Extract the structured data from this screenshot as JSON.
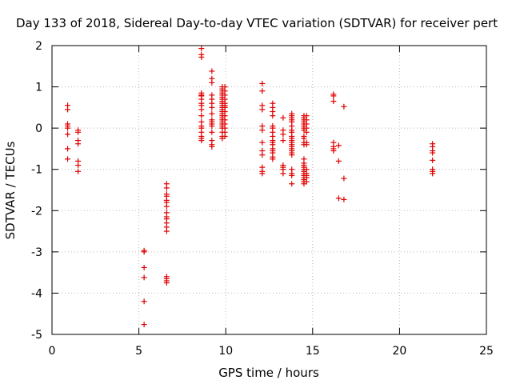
{
  "chart_data": {
    "type": "scatter",
    "title": "Day 133 of 2018, Sidereal Day-to-day VTEC variation (SDTVAR) for receiver pert",
    "xlabel": "GPS time / hours",
    "ylabel": "SDTVAR / TECUs",
    "xlim": [
      0,
      25
    ],
    "ylim": [
      -5,
      2
    ],
    "xticks": [
      0,
      5,
      10,
      15,
      20,
      25
    ],
    "yticks": [
      -5,
      -4,
      -3,
      -2,
      -1,
      0,
      1,
      2
    ],
    "grid": true,
    "marker": "+",
    "color": "#e00000",
    "series": [
      {
        "name": "SDTVAR",
        "x": [
          0.9,
          0.9,
          0.9,
          0.9,
          0.9,
          0.9,
          0.9,
          0.9,
          1.5,
          1.5,
          1.5,
          1.5,
          1.5,
          1.5,
          1.5,
          5.3,
          5.3,
          5.3,
          5.3,
          5.3,
          5.3,
          6.6,
          6.6,
          6.6,
          6.6,
          6.6,
          6.6,
          6.6,
          6.6,
          6.6,
          6.6,
          6.6,
          6.6,
          6.6,
          6.6,
          6.6,
          6.6,
          6.6,
          8.6,
          8.6,
          8.6,
          8.6,
          8.6,
          8.6,
          8.6,
          8.6,
          8.6,
          8.6,
          8.6,
          8.6,
          8.6,
          8.6,
          8.6,
          8.6,
          8.6,
          8.6,
          9.2,
          9.2,
          9.2,
          9.2,
          9.2,
          9.2,
          9.2,
          9.2,
          9.2,
          9.2,
          9.2,
          9.2,
          9.2,
          9.2,
          9.2,
          9.2,
          9.8,
          9.8,
          9.8,
          9.8,
          9.8,
          9.8,
          9.8,
          9.8,
          9.8,
          9.8,
          9.8,
          9.8,
          9.8,
          9.8,
          9.8,
          9.8,
          9.8,
          9.8,
          9.8,
          9.8,
          9.8,
          9.8,
          9.8,
          9.8,
          9.95,
          9.95,
          9.95,
          9.95,
          9.95,
          9.95,
          9.95,
          9.95,
          9.95,
          9.95,
          9.95,
          9.95,
          9.95,
          9.95,
          12.1,
          12.1,
          12.1,
          12.1,
          12.1,
          12.1,
          12.1,
          12.1,
          12.1,
          12.1,
          12.1,
          12.1,
          12.7,
          12.7,
          12.7,
          12.7,
          12.7,
          12.7,
          12.7,
          12.7,
          12.7,
          12.7,
          12.7,
          12.7,
          12.7,
          12.7,
          12.7,
          12.7,
          13.3,
          13.3,
          13.3,
          13.3,
          13.3,
          13.3,
          13.3,
          13.3,
          13.8,
          13.8,
          13.8,
          13.8,
          13.8,
          13.8,
          13.8,
          13.8,
          13.8,
          13.8,
          13.8,
          13.8,
          13.8,
          13.8,
          13.8,
          13.8,
          13.8,
          13.8,
          13.8,
          13.8,
          13.8,
          13.8,
          14.5,
          14.5,
          14.5,
          14.5,
          14.5,
          14.5,
          14.5,
          14.5,
          14.5,
          14.5,
          14.5,
          14.5,
          14.5,
          14.5,
          14.5,
          14.5,
          14.5,
          14.5,
          14.5,
          14.5,
          14.5,
          14.5,
          14.5,
          14.5,
          14.65,
          14.65,
          14.65,
          14.65,
          14.65,
          14.65,
          14.65,
          14.65,
          14.65,
          14.65,
          14.65,
          14.65,
          16.2,
          16.2,
          16.2,
          16.2,
          16.2,
          16.2,
          16.2,
          16.5,
          16.5,
          16.5,
          16.8,
          16.8,
          16.8,
          21.9,
          21.9,
          21.9,
          21.9,
          21.9,
          21.9,
          21.9,
          21.9
        ],
        "y": [
          0.55,
          0.45,
          0.1,
          0,
          -0.15,
          -0.5,
          -0.75,
          0.05,
          -0.05,
          -0.1,
          -0.3,
          -0.38,
          -0.8,
          -0.9,
          -1.05,
          -2.97,
          -3.0,
          -3.38,
          -3.62,
          -4.2,
          -4.76,
          -1.35,
          -1.45,
          -1.6,
          -1.65,
          -1.75,
          -1.8,
          -1.9,
          -2.05,
          -2.15,
          -2.2,
          -2.3,
          -2.4,
          -2.5,
          -3.6,
          -3.65,
          -3.7,
          -3.75,
          1.93,
          1.78,
          1.72,
          0.85,
          0.8,
          0.7,
          0.6,
          0.55,
          0.45,
          0.3,
          0.15,
          0.05,
          0,
          -0.1,
          -0.2,
          -0.25,
          -0.3,
          0.78,
          1.38,
          1.2,
          1.1,
          0.8,
          0.7,
          0.6,
          0.35,
          0.2,
          0.15,
          0.1,
          -0.1,
          -0.3,
          -0.4,
          -0.45,
          0.5,
          0.05,
          1.0,
          0.95,
          0.9,
          0.85,
          0.8,
          0.75,
          0.7,
          0.65,
          0.6,
          0.55,
          0.5,
          0.45,
          0.4,
          0.35,
          0.3,
          0.25,
          0.2,
          0.15,
          0.1,
          0.05,
          0,
          -0.1,
          -0.2,
          -0.25,
          1.0,
          0.9,
          0.8,
          0.7,
          0.6,
          0.5,
          0.4,
          0.3,
          0.2,
          0.1,
          0,
          -0.1,
          -0.2,
          0.55,
          1.08,
          0.9,
          0.55,
          0.45,
          0.05,
          -0.05,
          -0.35,
          -0.55,
          -0.65,
          -0.95,
          -1.05,
          -1.1,
          0.6,
          0.5,
          0.4,
          0.3,
          0.05,
          0,
          -0.1,
          -0.2,
          -0.3,
          -0.35,
          -0.4,
          -0.5,
          -0.55,
          -0.6,
          -0.7,
          -0.75,
          0.25,
          -0.05,
          -0.15,
          -0.3,
          -0.9,
          -0.95,
          -1.0,
          -1.1,
          0.35,
          0.3,
          0.25,
          0.2,
          0.15,
          0.05,
          -0.05,
          -0.1,
          -0.2,
          -0.25,
          -0.3,
          -0.35,
          -0.4,
          -0.45,
          -0.5,
          -0.55,
          -0.6,
          -0.65,
          -1.0,
          -1.1,
          -1.15,
          -1.35,
          0.3,
          0.25,
          0.2,
          0.15,
          0.05,
          0,
          -0.05,
          -0.2,
          -0.25,
          -0.35,
          -0.4,
          -0.85,
          -0.95,
          -1.0,
          -1.05,
          -1.1,
          -1.15,
          -1.2,
          -1.25,
          -1.3,
          -1.35,
          0.1,
          -0.75,
          -0.9,
          0.3,
          0.2,
          0.1,
          0,
          -0.1,
          -0.35,
          -0.4,
          -1.0,
          -1.1,
          -1.15,
          -1.2,
          -1.3,
          0.82,
          0.78,
          0.65,
          -0.35,
          -0.45,
          -0.5,
          -0.55,
          -0.42,
          -0.8,
          -1.7,
          0.52,
          -1.22,
          -1.73,
          -0.38,
          -0.45,
          -0.55,
          -0.6,
          -0.78,
          -1.0,
          -1.05,
          -1.1
        ]
      }
    ]
  }
}
